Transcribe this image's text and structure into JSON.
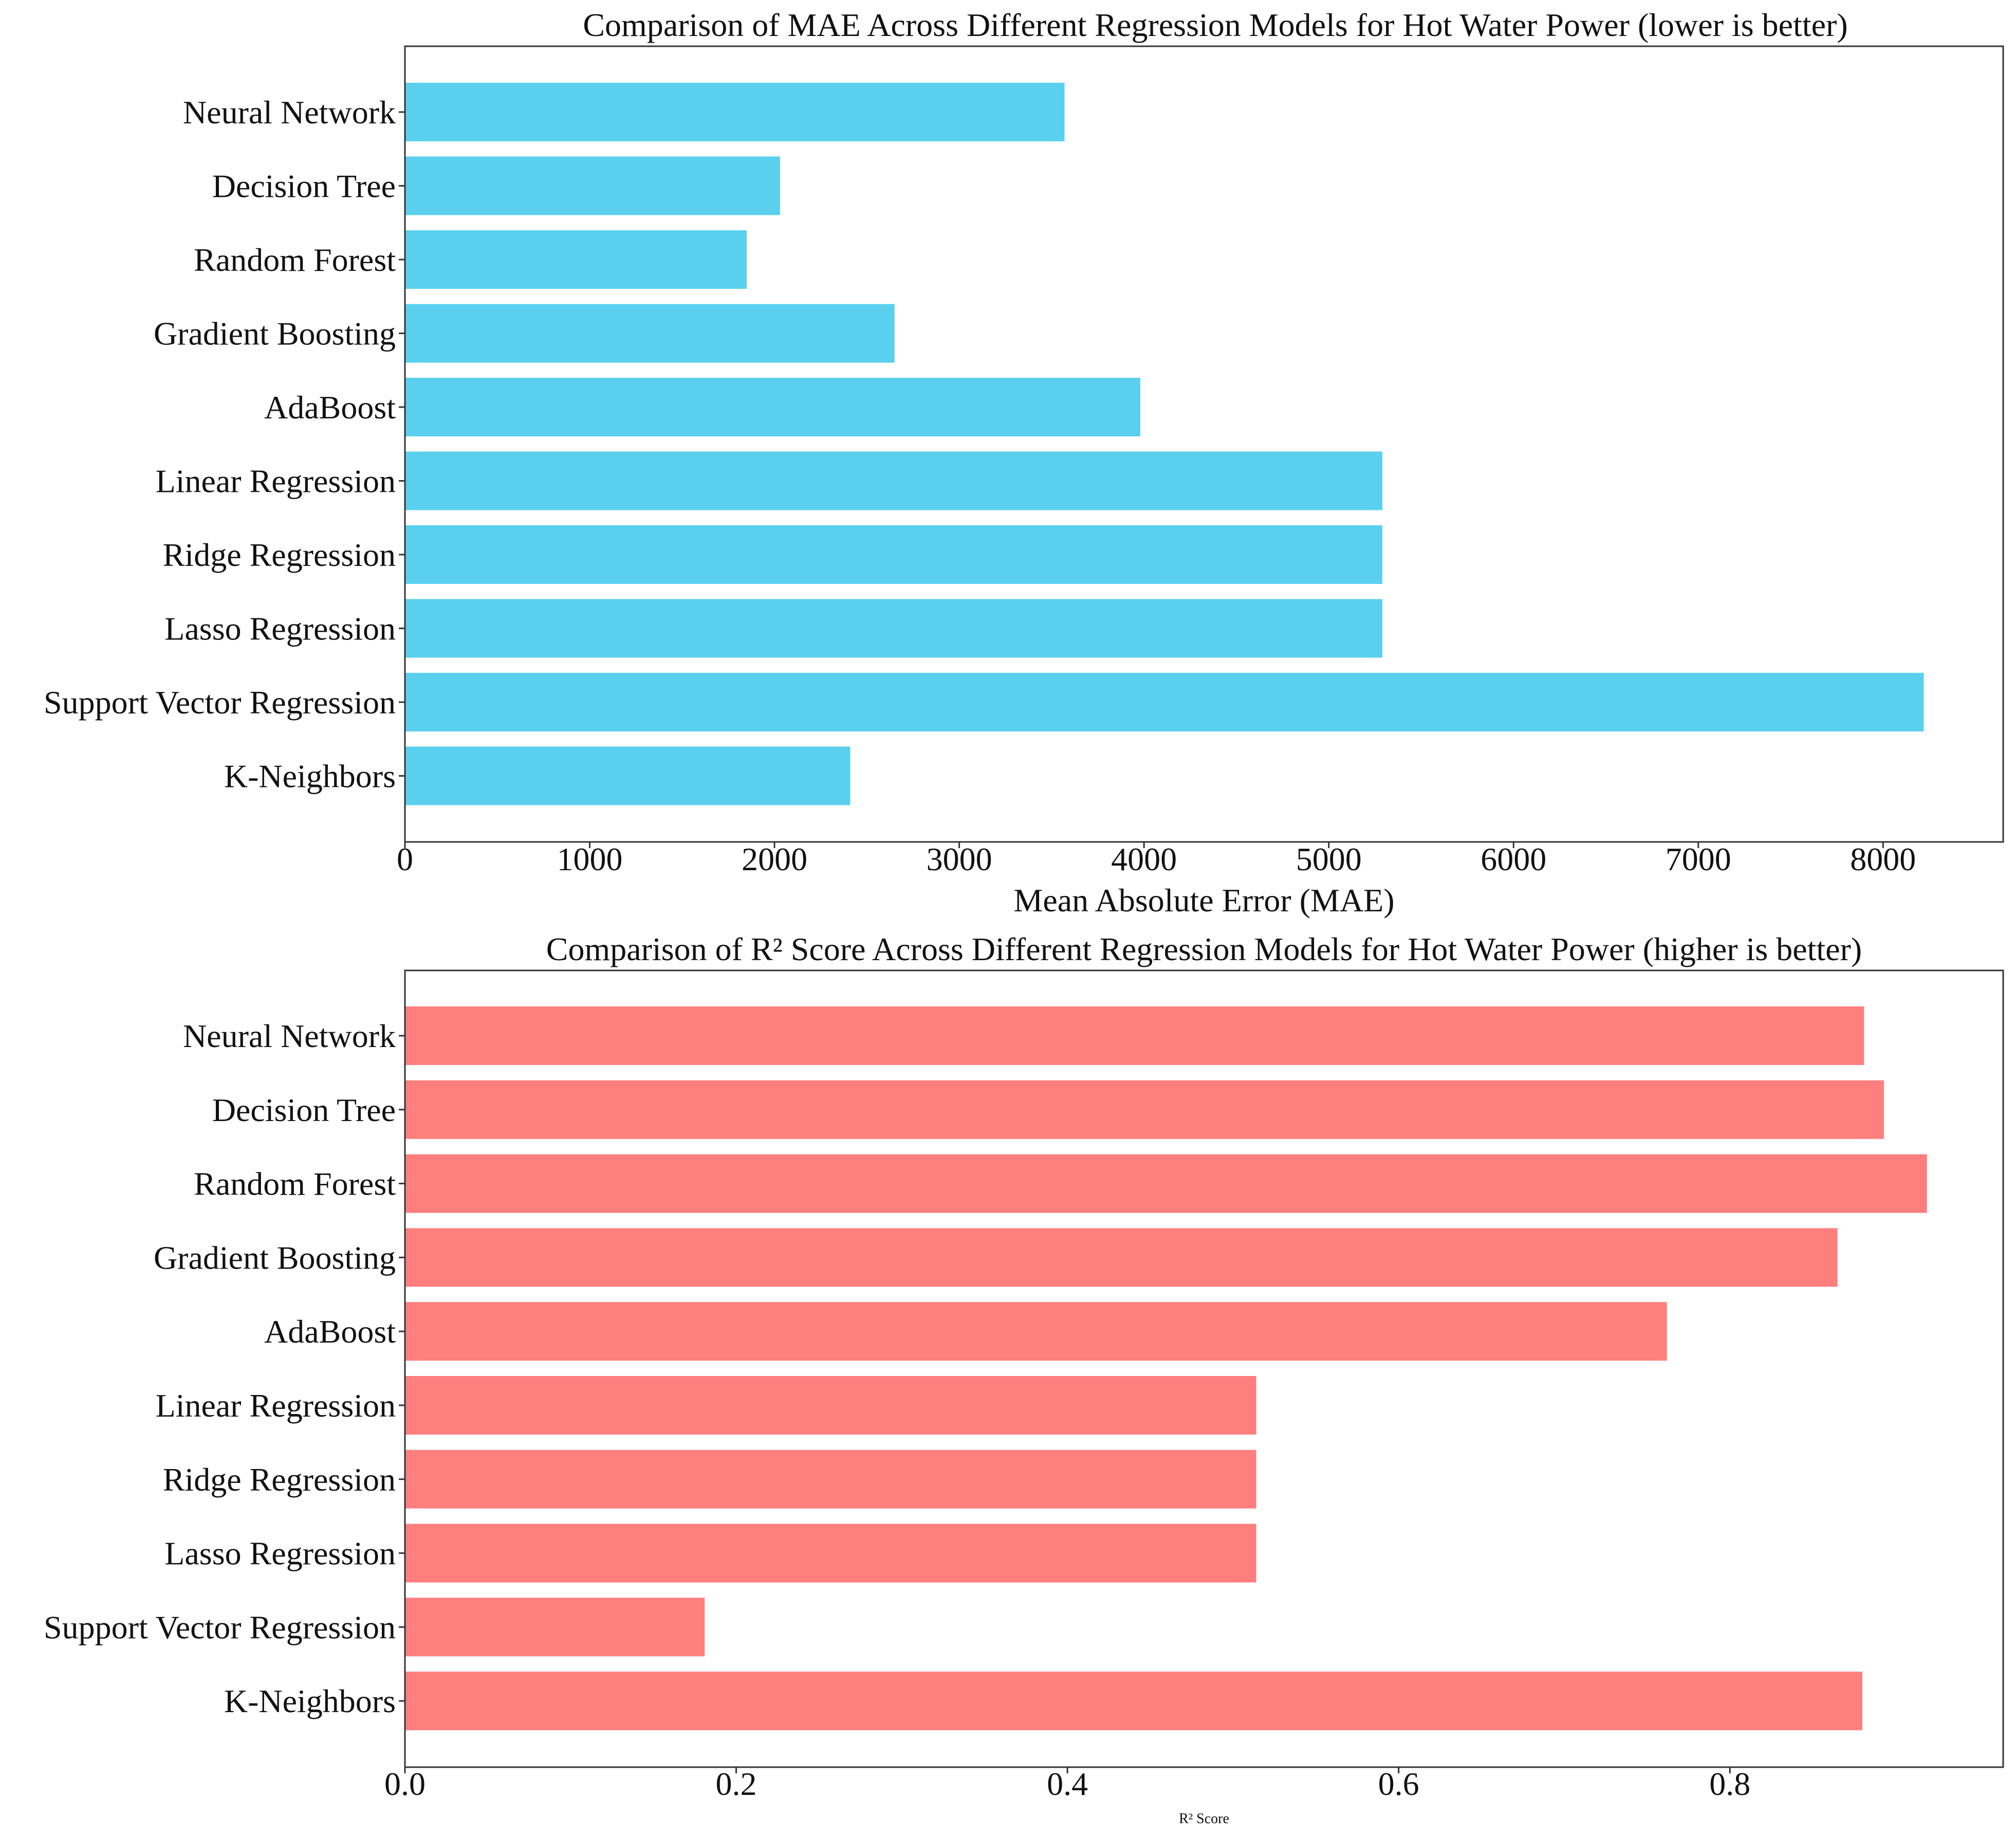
{
  "chart_data": [
    {
      "type": "bar",
      "orientation": "horizontal",
      "title": "Comparison of MAE Across Different Regression Models for Hot Water Power (lower is better)",
      "xlabel": "Mean Absolute Error (MAE)",
      "ylabel": "",
      "color": "#5AD0EE",
      "categories": [
        "Neural Network",
        "Decision Tree",
        "Random Forest",
        "Gradient Boosting",
        "AdaBoost",
        "Linear Regression",
        "Ridge Regression",
        "Lasso Regression",
        "Support Vector Regression",
        "K-Neighbors"
      ],
      "values": [
        3570,
        2030,
        1850,
        2650,
        3980,
        5290,
        5290,
        5290,
        8220,
        2410
      ],
      "xlim": [
        0,
        8650
      ],
      "xticks": [
        0,
        1000,
        2000,
        3000,
        4000,
        5000,
        6000,
        7000,
        8000
      ],
      "xtick_labels": [
        "0",
        "1000",
        "2000",
        "3000",
        "4000",
        "5000",
        "6000",
        "7000",
        "8000"
      ],
      "grid": false
    },
    {
      "type": "bar",
      "orientation": "horizontal",
      "title": "Comparison of R² Score Across Different Regression Models for Hot Water Power (higher is better)",
      "xlabel": "R² Score",
      "ylabel": "",
      "color": "#FF7F7F",
      "categories": [
        "Neural Network",
        "Decision Tree",
        "Random Forest",
        "Gradient Boosting",
        "AdaBoost",
        "Linear Regression",
        "Ridge Regression",
        "Lasso Regression",
        "Support Vector Regression",
        "K-Neighbors"
      ],
      "values": [
        0.881,
        0.893,
        0.919,
        0.865,
        0.762,
        0.514,
        0.514,
        0.514,
        0.181,
        0.88
      ],
      "xlim": [
        0,
        0.965
      ],
      "xticks": [
        0,
        0.2,
        0.4,
        0.6,
        0.8
      ],
      "xtick_labels": [
        "0.0",
        "0.2",
        "0.4",
        "0.6",
        "0.8"
      ],
      "grid": false
    }
  ]
}
